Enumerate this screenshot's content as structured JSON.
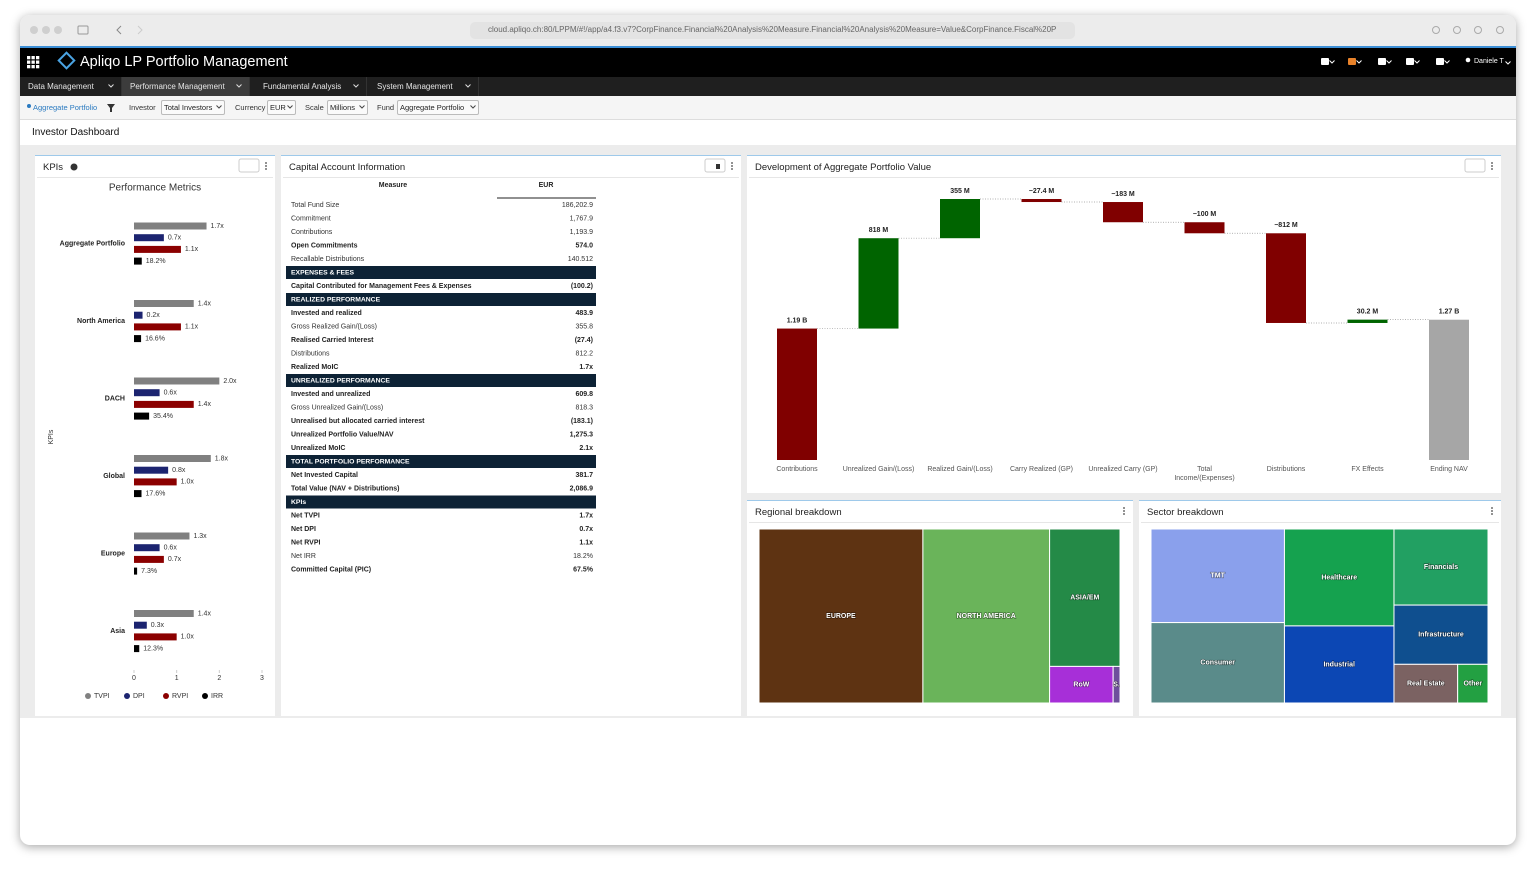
{
  "browser": {
    "url": "cloud.apliqo.ch:80/LPPM/#!/app/a4.f3.v7?CorpFinance.Financial%20Analysis%20Measure.Financial%20Analysis%20Measure=Value&CorpFinance.Fiscal%20P"
  },
  "app": {
    "title": "Apliqo LP Portfolio Management",
    "user": "Daniele T"
  },
  "menu": [
    "Data Management",
    "Performance Management",
    "Fundamental Analysis",
    "System Management"
  ],
  "filters": {
    "breadcrumb": "Aggregate Portfolio",
    "items": [
      {
        "label": "Investor",
        "value": "Total Investors"
      },
      {
        "label": "Currency",
        "value": "EUR"
      },
      {
        "label": "Scale",
        "value": "Millions"
      },
      {
        "label": "Fund",
        "value": "Aggregate Portfolio"
      }
    ]
  },
  "page_title": "Investor Dashboard",
  "panels": {
    "kpis": "KPIs",
    "capital": "Capital Account Information",
    "waterfall": "Development of Aggregate Portfolio Value",
    "regional": "Regional breakdown",
    "sector": "Sector breakdown"
  },
  "table": {
    "columns": [
      "Measure",
      "EUR"
    ],
    "rows": [
      {
        "label": "Total Fund Size",
        "value": "186,202.9"
      },
      {
        "label": "Commitment",
        "value": "1,767.9"
      },
      {
        "label": "Contributions",
        "value": "1,193.9"
      },
      {
        "label": "Open Commitments",
        "value": "574.0",
        "bold": true
      },
      {
        "label": "Recallable Distributions",
        "value": "140.512"
      },
      {
        "section": "EXPENSES & FEES"
      },
      {
        "label": "Capital Contributed for Management Fees & Expenses",
        "value": "(100.2)",
        "bold": true
      },
      {
        "section": "REALIZED PERFORMANCE"
      },
      {
        "label": "Invested and realized",
        "value": "483.9",
        "bold": true
      },
      {
        "label": "Gross Realized Gain/(Loss)",
        "value": "355.8"
      },
      {
        "label": "Realised Carried Interest",
        "value": "(27.4)",
        "bold": true
      },
      {
        "label": "Distributions",
        "value": "812.2"
      },
      {
        "label": "Realized MoIC",
        "value": "1.7x",
        "bold": true
      },
      {
        "section": "UNREALIZED PERFORMANCE"
      },
      {
        "label": "Invested and unrealized",
        "value": "609.8",
        "bold": true
      },
      {
        "label": "Gross Unrealized Gain/(Loss)",
        "value": "818.3"
      },
      {
        "label": "Unrealised but allocated carried interest",
        "value": "(183.1)",
        "bold": true
      },
      {
        "label": "Unrealized Portfolio Value/NAV",
        "value": "1,275.3",
        "bold": true
      },
      {
        "label": "Unrealized MoIC",
        "value": "2.1x",
        "bold": true
      },
      {
        "section": "TOTAL PORTFOLIO PERFORMANCE"
      },
      {
        "label": "Net Invested Capital",
        "value": "381.7",
        "bold": true
      },
      {
        "label": "Total Value (NAV + Distributions)",
        "value": "2,086.9",
        "bold": true
      },
      {
        "section": "KPIs"
      },
      {
        "label": "Net TVPI",
        "value": "1.7x",
        "bold": true
      },
      {
        "label": "Net DPI",
        "value": "0.7x",
        "bold": true
      },
      {
        "label": "Net RVPI",
        "value": "1.1x",
        "bold": true
      },
      {
        "label": "Net IRR",
        "value": "18.2%"
      },
      {
        "label": "Committed Capital (PIC)",
        "value": "67.5%",
        "bold": true
      }
    ]
  },
  "chart_data": [
    {
      "type": "bar",
      "orientation": "horizontal",
      "title": "Performance Metrics",
      "y_label": "KPIs",
      "categories": [
        "Aggregate Portfolio",
        "North America",
        "DACH",
        "Global",
        "Europe",
        "Asia"
      ],
      "series": [
        {
          "name": "TVPI",
          "color": "#808080",
          "values": [
            1.7,
            1.4,
            2.0,
            1.8,
            1.3,
            1.4
          ],
          "value_labels": [
            "1.7x",
            "1.4x",
            "2.0x",
            "1.8x",
            "1.3x",
            "1.4x"
          ]
        },
        {
          "name": "DPI",
          "color": "#1c2470",
          "values": [
            0.7,
            0.2,
            0.6,
            0.8,
            0.6,
            0.3
          ],
          "value_labels": [
            "0.7x",
            "0.2x",
            "0.6x",
            "0.8x",
            "0.6x",
            "0.3x"
          ]
        },
        {
          "name": "RVPI",
          "color": "#8b0000",
          "values": [
            1.1,
            1.1,
            1.4,
            1.0,
            0.7,
            1.0
          ],
          "value_labels": [
            "1.1x",
            "1.1x",
            "1.4x",
            "1.0x",
            "0.7x",
            "1.0x"
          ]
        },
        {
          "name": "IRR",
          "color": "#000000",
          "values": [
            0.182,
            0.166,
            0.354,
            0.176,
            0.073,
            0.123
          ],
          "value_labels": [
            "18.2%",
            "16.6%",
            "35.4%",
            "17.6%",
            "7.3%",
            "12.3%"
          ]
        }
      ],
      "xlim": [
        0,
        3
      ],
      "xticks": [
        0,
        1,
        2,
        3
      ],
      "legend": "bottom"
    },
    {
      "type": "waterfall",
      "categories": [
        "Contributions",
        "Unrealized Gain/(Loss)",
        "Realized Gain/(Loss)",
        "Carry Realized (GP)",
        "Unrealized Carry (GP)",
        "Total Income/(Expenses)",
        "Distributions",
        "FX Effects",
        "Ending NAV"
      ],
      "values": [
        1190,
        818,
        355,
        -27.4,
        -183,
        -100,
        -812,
        30.2,
        1270
      ],
      "value_labels": [
        "1.19 B",
        "818 M",
        "355 M",
        "−27.4 M",
        "−183 M",
        "−100 M",
        "−812 M",
        "30.2 M",
        "1.27 B"
      ],
      "measures": [
        "absolute",
        "relative",
        "relative",
        "relative",
        "relative",
        "relative",
        "relative",
        "relative",
        "total"
      ],
      "colors": [
        "#800000",
        "#006400",
        "#006400",
        "#800000",
        "#800000",
        "#800000",
        "#800000",
        "#006400",
        "#a6a6a6"
      ]
    },
    {
      "type": "treemap",
      "labels": [
        "EUROPE",
        "NORTH AMERICA",
        "ASIA/EM",
        "RoW",
        "S."
      ],
      "values": [
        45.4,
        35.1,
        15.4,
        3.7,
        0.4
      ],
      "colors": [
        "#5e3312",
        "#6ab45a",
        "#248a47",
        "#a72fd8",
        "#6e4f9c"
      ]
    },
    {
      "type": "treemap",
      "labels": [
        "TMT",
        "Consumer",
        "Healthcare",
        "Industrial",
        "Financials",
        "Infrastructure",
        "Real Estate",
        "Other"
      ],
      "values": [
        21.3,
        18.3,
        18.1,
        14.4,
        12.2,
        9.5,
        4.2,
        2.0
      ],
      "colors": [
        "#8aa0ec",
        "#5a8b8a",
        "#15a24f",
        "#0c47b4",
        "#22a062",
        "#0f4f8f",
        "#7b6262",
        "#23a042"
      ]
    }
  ]
}
